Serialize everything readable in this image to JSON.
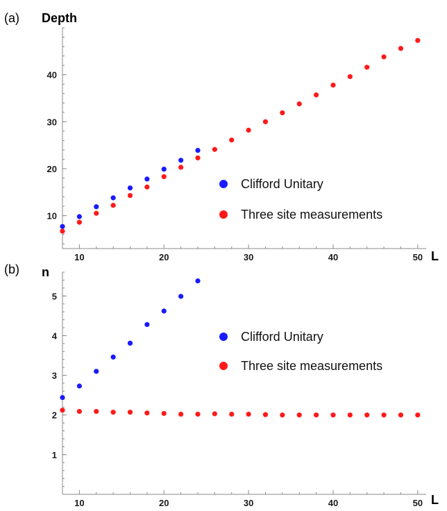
{
  "chart_data": [
    {
      "type": "scatter",
      "panel_label": "(a)",
      "title": "",
      "ylabel": "Depth",
      "xlabel": "L",
      "xlim": [
        8,
        51
      ],
      "ylim": [
        3,
        50
      ],
      "xticks": [
        10,
        20,
        30,
        40,
        50
      ],
      "yticks": [
        10,
        20,
        30,
        40
      ],
      "x_tick_labels": [
        "10",
        "20",
        "30",
        "40",
        "50"
      ],
      "y_tick_labels": [
        "10",
        "20",
        "30",
        "40"
      ],
      "legend_position": "right-middle",
      "series": [
        {
          "name": "Clifford Unitary",
          "color": "#1a1aff",
          "x": [
            8,
            10,
            12,
            14,
            16,
            18,
            20,
            22,
            24
          ],
          "y": [
            7.7,
            9.8,
            11.9,
            13.8,
            15.9,
            17.8,
            19.9,
            21.8,
            23.9
          ]
        },
        {
          "name": "Three site measurements",
          "color": "#ff1a1a",
          "x": [
            8,
            10,
            12,
            14,
            16,
            18,
            20,
            22,
            24,
            26,
            28,
            30,
            32,
            34,
            36,
            38,
            40,
            42,
            44,
            46,
            48,
            50
          ],
          "y": [
            6.7,
            8.6,
            10.5,
            12.2,
            14.3,
            16.1,
            18.3,
            20.3,
            22.3,
            24.1,
            26.1,
            28.2,
            30.0,
            31.9,
            33.8,
            35.7,
            37.8,
            39.6,
            41.6,
            43.8,
            45.6,
            47.3
          ]
        }
      ]
    },
    {
      "type": "scatter",
      "panel_label": "(b)",
      "title": "",
      "ylabel": "n",
      "xlabel": "L",
      "xlim": [
        8,
        51
      ],
      "ylim": [
        0,
        5.6
      ],
      "xticks": [
        10,
        20,
        30,
        40,
        50
      ],
      "yticks": [
        1,
        2,
        3,
        4,
        5
      ],
      "x_tick_labels": [
        "10",
        "20",
        "30",
        "40",
        "50"
      ],
      "y_tick_labels": [
        "1",
        "2",
        "3",
        "4",
        "5"
      ],
      "legend_position": "right-middle",
      "series": [
        {
          "name": "Clifford Unitary",
          "color": "#1a1aff",
          "x": [
            8,
            10,
            12,
            14,
            16,
            18,
            20,
            22,
            24
          ],
          "y": [
            2.44,
            2.73,
            3.1,
            3.46,
            3.81,
            4.28,
            4.62,
            4.99,
            5.38
          ]
        },
        {
          "name": "Three site measurements",
          "color": "#ff1a1a",
          "x": [
            8,
            10,
            12,
            14,
            16,
            18,
            20,
            22,
            24,
            26,
            28,
            30,
            32,
            34,
            36,
            38,
            40,
            42,
            44,
            46,
            48,
            50
          ],
          "y": [
            2.12,
            2.09,
            2.09,
            2.07,
            2.07,
            2.05,
            2.04,
            2.02,
            2.02,
            2.03,
            2.02,
            2.02,
            2.01,
            2.0,
            2.0,
            2.0,
            2.0,
            2.0,
            2.0,
            2.0,
            2.0,
            2.0
          ]
        }
      ]
    }
  ]
}
